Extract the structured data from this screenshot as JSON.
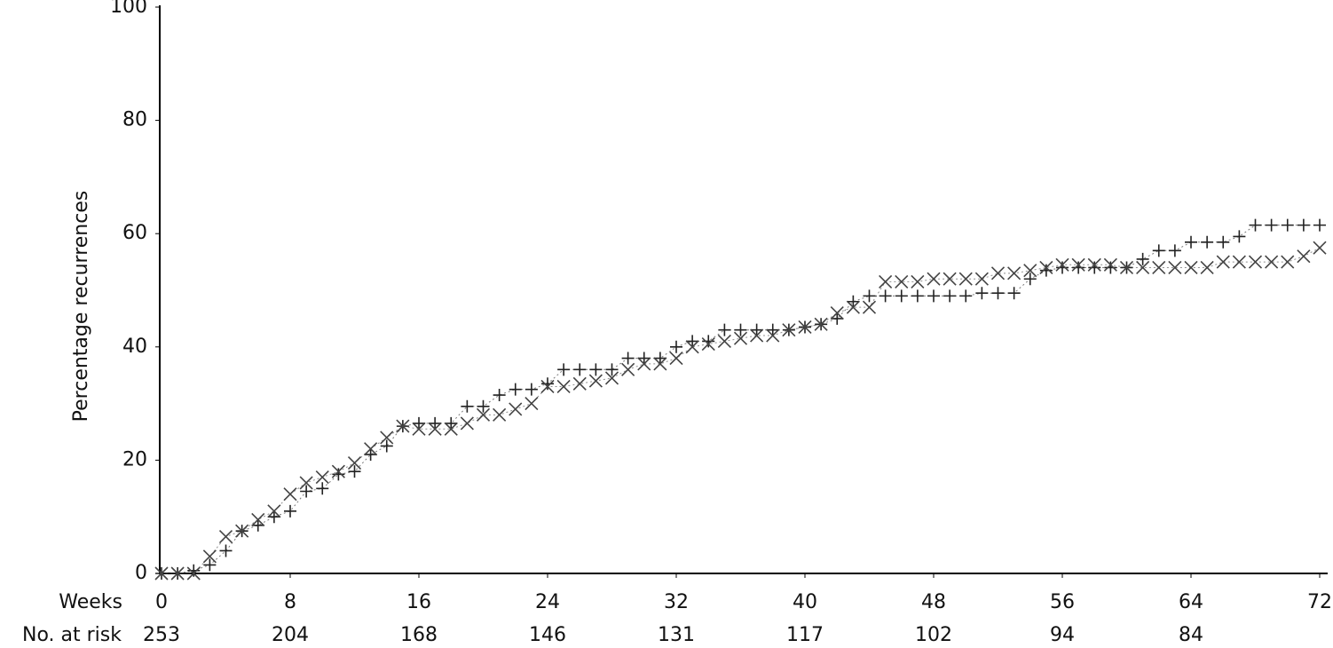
{
  "chart_data": {
    "type": "line",
    "ylabel": "Percentage recurrences",
    "xlabel": "Weeks",
    "xlim": [
      0,
      72
    ],
    "ylim": [
      0,
      100
    ],
    "xticks": [
      0,
      8,
      16,
      24,
      32,
      40,
      48,
      56,
      64,
      72
    ],
    "yticks": [
      0,
      20,
      40,
      60,
      80,
      100
    ],
    "risk_table": {
      "label": "No. at risk",
      "values": [
        253,
        204,
        168,
        146,
        131,
        117,
        102,
        94,
        84
      ]
    },
    "x": [
      0,
      1,
      2,
      3,
      4,
      5,
      6,
      7,
      8,
      9,
      10,
      11,
      12,
      13,
      14,
      15,
      16,
      17,
      18,
      19,
      20,
      21,
      22,
      23,
      24,
      25,
      26,
      27,
      28,
      29,
      30,
      31,
      32,
      33,
      34,
      35,
      36,
      37,
      38,
      39,
      40,
      41,
      42,
      43,
      44,
      45,
      46,
      47,
      48,
      49,
      50,
      51,
      52,
      53,
      54,
      55,
      56,
      57,
      58,
      59,
      60,
      61,
      62,
      63,
      64,
      65,
      66,
      67,
      68,
      69,
      70,
      71,
      72
    ],
    "series": [
      {
        "marker": "+",
        "color": "#222222",
        "values": [
          0,
          0,
          0.5,
          1.5,
          4,
          7.5,
          8.5,
          10,
          11,
          14.5,
          15,
          17.5,
          18,
          21,
          22.5,
          26,
          26.5,
          26.5,
          26.5,
          29.5,
          29.5,
          31.5,
          32.5,
          32.5,
          33.5,
          36,
          36,
          36,
          36,
          38,
          38,
          38,
          40,
          41,
          41,
          43,
          43,
          43,
          43,
          43,
          43.5,
          44,
          45,
          48,
          49,
          49,
          49,
          49,
          49,
          49,
          49,
          49.5,
          49.5,
          49.5,
          52,
          53.5,
          54,
          54,
          54,
          54,
          54,
          55.5,
          57,
          57,
          58.5,
          58.5,
          58.5,
          59.5,
          61.5,
          61.5,
          61.5,
          61.5,
          61.5
        ]
      },
      {
        "marker": "x",
        "color": "#444444",
        "values": [
          0,
          0,
          0,
          3,
          6.5,
          7.5,
          9.5,
          11,
          14,
          16,
          17,
          18,
          19.5,
          22,
          24,
          26,
          25.5,
          25.5,
          25.5,
          26.5,
          28,
          28,
          29,
          30,
          33,
          33,
          33.5,
          34,
          34.5,
          36,
          37,
          37,
          38,
          40,
          40.5,
          41,
          41.5,
          42,
          42,
          43,
          43.5,
          44,
          46,
          47,
          47,
          51.5,
          51.5,
          51.5,
          52,
          52,
          52,
          52,
          53,
          53,
          53.5,
          54,
          54.5,
          54.5,
          54.5,
          54.5,
          54,
          54,
          54,
          54,
          54,
          54,
          55,
          55,
          55,
          55,
          55,
          56,
          57.5
        ]
      }
    ]
  }
}
